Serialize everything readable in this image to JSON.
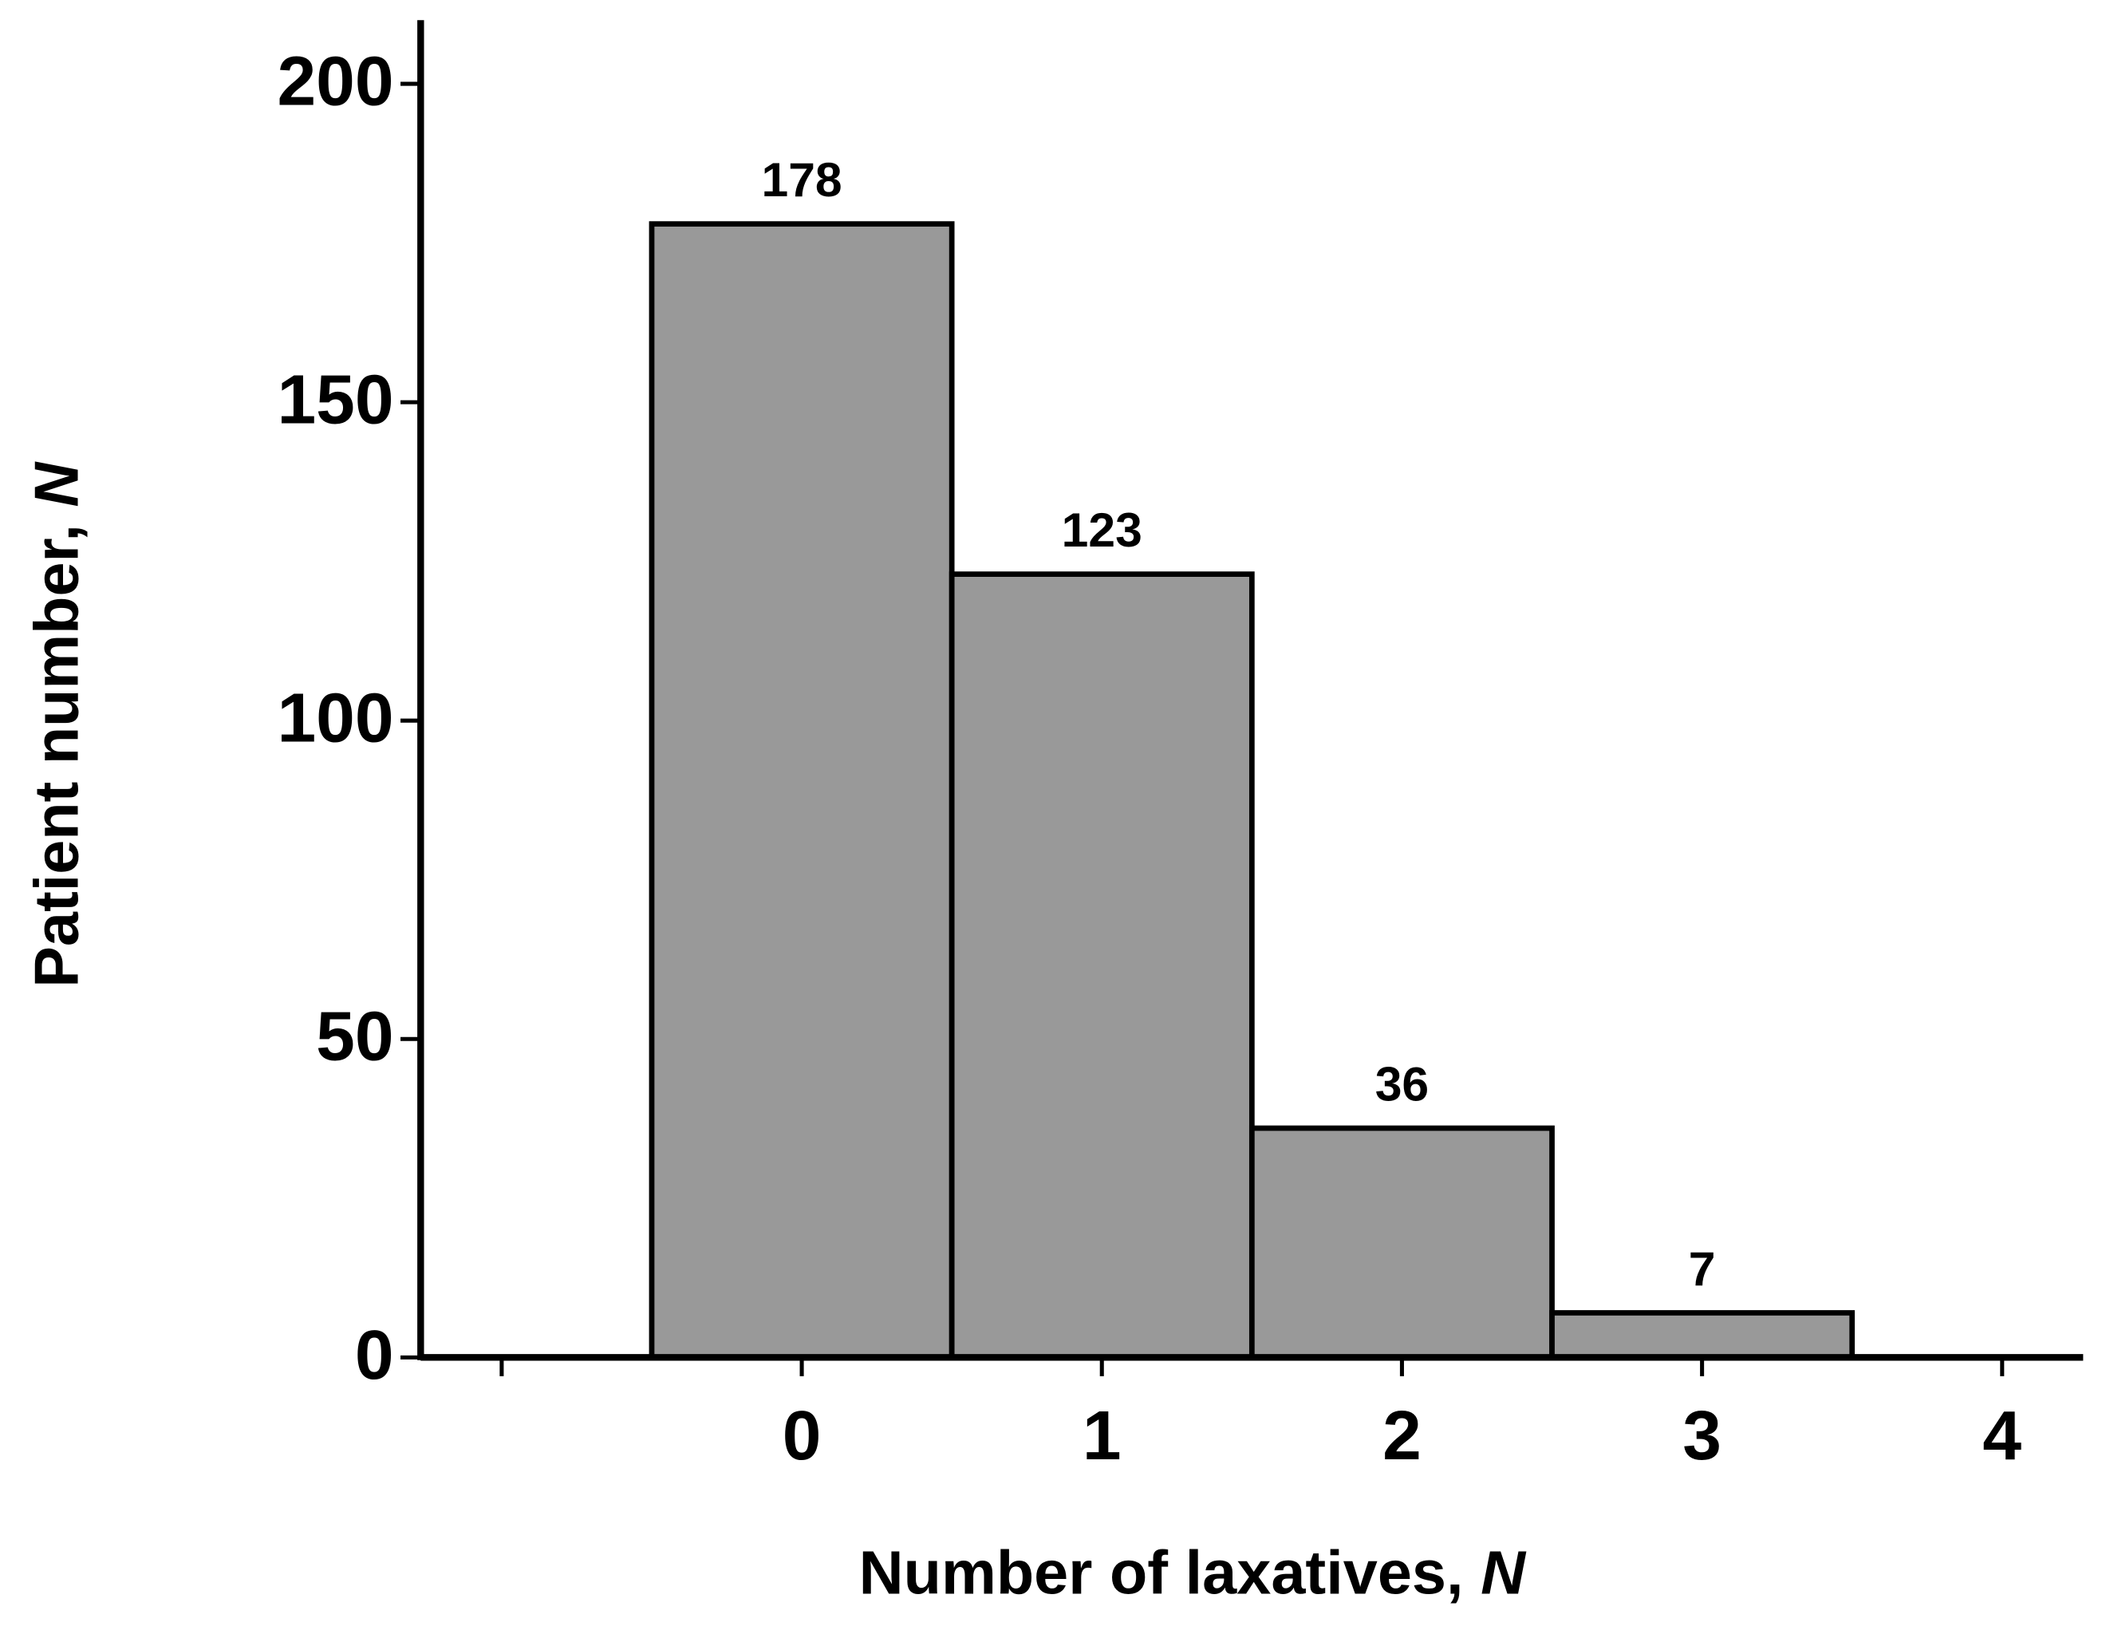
{
  "chart_data": {
    "type": "histogram",
    "x_label": {
      "text": "Number of laxatives, ",
      "italic": "N"
    },
    "y_label": {
      "text": "Patient number, ",
      "italic": "N"
    },
    "bins": [
      -0.5,
      0.5,
      1.5,
      2.5,
      3.5
    ],
    "values": [
      178,
      123,
      36,
      7
    ],
    "color": "#999999",
    "xlim": [
      -1.27,
      4.27
    ],
    "xticks": [
      0,
      1,
      2,
      3,
      4
    ],
    "xticks_unlabeled": [
      -1
    ],
    "ylim": [
      0,
      210
    ],
    "yticks": [
      0,
      50,
      100,
      150,
      200
    ]
  }
}
